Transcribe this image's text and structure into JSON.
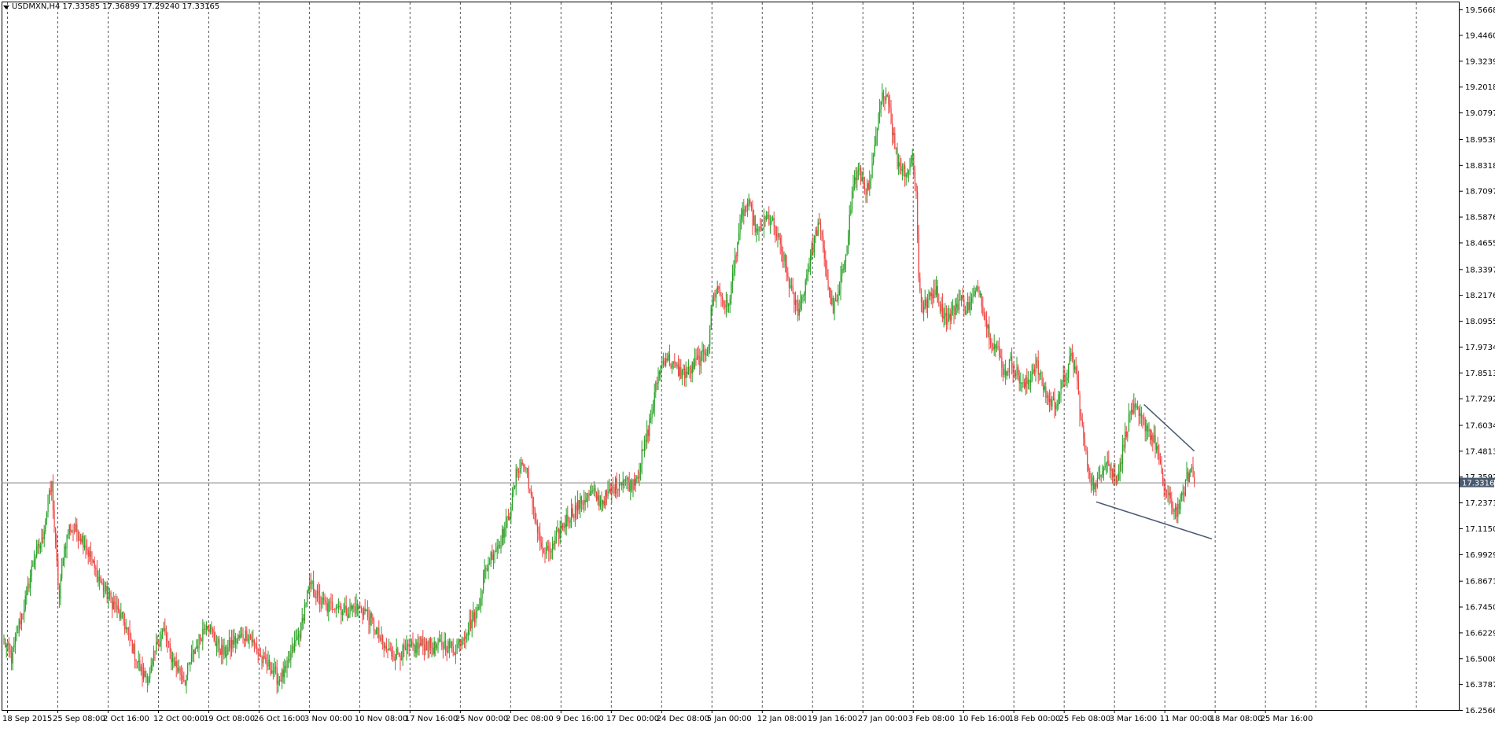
{
  "header": {
    "symbol_timeframe": "USDMXN,H4",
    "open": "17.33585",
    "high": "17.36899",
    "low": "17.29240",
    "close": "17.33165"
  },
  "current_price_label": "17.33165",
  "colors": {
    "bull": "#22a022",
    "bear": "#f04040",
    "grid": "#3a3a3a",
    "axis": "#000000",
    "trendline": "#4a5a70",
    "price_line": "#808080",
    "price_tag": "#4a5a70"
  },
  "chart_data": {
    "type": "candlestick",
    "symbol": "USDMXN",
    "timeframe": "H4",
    "ylim": [
      16.2566,
      19.5668
    ],
    "y_ticks": [
      "19.56681",
      "19.44600",
      "19.32390",
      "19.20180",
      "19.07970",
      "18.95390",
      "18.83180",
      "18.70970",
      "18.58760",
      "18.46550",
      "18.33970",
      "18.21760",
      "18.09550",
      "17.97340",
      "17.85130",
      "17.72920",
      "17.60340",
      "17.48130",
      "17.35920",
      "17.23710",
      "17.11500",
      "16.99290",
      "16.86710",
      "16.74500",
      "16.62290",
      "16.50080",
      "16.37870",
      "16.25660"
    ],
    "x_ticks": [
      "18 Sep 2015",
      "25 Sep 08:00",
      "2 Oct 16:00",
      "12 Oct 00:00",
      "19 Oct 08:00",
      "26 Oct 16:00",
      "3 Nov 00:00",
      "10 Nov 08:00",
      "17 Nov 16:00",
      "25 Nov 00:00",
      "2 Dec 08:00",
      "9 Dec 16:00",
      "17 Dec 00:00",
      "24 Dec 08:00",
      "5 Jan 00:00",
      "12 Jan 08:00",
      "19 Jan 16:00",
      "27 Jan 00:00",
      "3 Feb 08:00",
      "10 Feb 16:00",
      "18 Feb 00:00",
      "25 Feb 08:00",
      "3 Mar 16:00",
      "11 Mar 00:00",
      "18 Mar 08:00",
      "25 Mar 16:00"
    ],
    "anchors": [
      [
        0,
        16.58
      ],
      [
        6,
        16.5
      ],
      [
        12,
        16.66
      ],
      [
        18,
        16.8
      ],
      [
        24,
        16.98
      ],
      [
        30,
        17.05
      ],
      [
        34,
        17.2
      ],
      [
        38,
        17.32
      ],
      [
        41,
        17.02
      ],
      [
        44,
        16.78
      ],
      [
        47,
        17.0
      ],
      [
        52,
        17.12
      ],
      [
        58,
        17.1
      ],
      [
        64,
        17.05
      ],
      [
        72,
        16.92
      ],
      [
        80,
        16.82
      ],
      [
        88,
        16.75
      ],
      [
        96,
        16.66
      ],
      [
        104,
        16.52
      ],
      [
        110,
        16.42
      ],
      [
        116,
        16.42
      ],
      [
        122,
        16.58
      ],
      [
        127,
        16.63
      ],
      [
        132,
        16.52
      ],
      [
        138,
        16.45
      ],
      [
        144,
        16.4
      ],
      [
        150,
        16.52
      ],
      [
        156,
        16.6
      ],
      [
        161,
        16.68
      ],
      [
        168,
        16.58
      ],
      [
        175,
        16.52
      ],
      [
        182,
        16.58
      ],
      [
        188,
        16.6
      ],
      [
        194,
        16.62
      ],
      [
        200,
        16.55
      ],
      [
        206,
        16.48
      ],
      [
        212,
        16.46
      ],
      [
        218,
        16.4
      ],
      [
        224,
        16.44
      ],
      [
        230,
        16.55
      ],
      [
        236,
        16.64
      ],
      [
        240,
        16.78
      ],
      [
        244,
        16.85
      ],
      [
        250,
        16.78
      ],
      [
        257,
        16.74
      ],
      [
        264,
        16.76
      ],
      [
        271,
        16.72
      ],
      [
        278,
        16.74
      ],
      [
        286,
        16.73
      ],
      [
        294,
        16.65
      ],
      [
        302,
        16.55
      ],
      [
        310,
        16.52
      ],
      [
        318,
        16.53
      ],
      [
        326,
        16.55
      ],
      [
        334,
        16.57
      ],
      [
        342,
        16.55
      ],
      [
        350,
        16.57
      ],
      [
        358,
        16.54
      ],
      [
        364,
        16.6
      ],
      [
        370,
        16.66
      ],
      [
        376,
        16.72
      ],
      [
        382,
        16.9
      ],
      [
        388,
        17.0
      ],
      [
        394,
        17.05
      ],
      [
        400,
        17.15
      ],
      [
        404,
        17.25
      ],
      [
        408,
        17.4
      ],
      [
        412,
        17.42
      ],
      [
        416,
        17.38
      ],
      [
        420,
        17.2
      ],
      [
        424,
        17.12
      ],
      [
        428,
        17.0
      ],
      [
        432,
        17.0
      ],
      [
        436,
        17.02
      ],
      [
        440,
        17.08
      ],
      [
        444,
        17.13
      ],
      [
        450,
        17.18
      ],
      [
        456,
        17.22
      ],
      [
        462,
        17.26
      ],
      [
        468,
        17.28
      ],
      [
        474,
        17.24
      ],
      [
        480,
        17.27
      ],
      [
        486,
        17.32
      ],
      [
        492,
        17.35
      ],
      [
        498,
        17.32
      ],
      [
        504,
        17.38
      ],
      [
        508,
        17.48
      ],
      [
        512,
        17.58
      ],
      [
        516,
        17.7
      ],
      [
        520,
        17.85
      ],
      [
        526,
        17.93
      ],
      [
        532,
        17.88
      ],
      [
        538,
        17.85
      ],
      [
        544,
        17.85
      ],
      [
        550,
        17.9
      ],
      [
        556,
        17.93
      ],
      [
        560,
        18.0
      ],
      [
        563,
        18.2
      ],
      [
        567,
        18.25
      ],
      [
        571,
        18.2
      ],
      [
        575,
        18.15
      ],
      [
        579,
        18.3
      ],
      [
        583,
        18.48
      ],
      [
        587,
        18.6
      ],
      [
        591,
        18.65
      ],
      [
        595,
        18.58
      ],
      [
        599,
        18.5
      ],
      [
        603,
        18.55
      ],
      [
        607,
        18.58
      ],
      [
        611,
        18.55
      ],
      [
        615,
        18.48
      ],
      [
        619,
        18.4
      ],
      [
        623,
        18.3
      ],
      [
        627,
        18.2
      ],
      [
        631,
        18.15
      ],
      [
        635,
        18.22
      ],
      [
        639,
        18.35
      ],
      [
        643,
        18.45
      ],
      [
        647,
        18.55
      ],
      [
        651,
        18.45
      ],
      [
        655,
        18.25
      ],
      [
        659,
        18.15
      ],
      [
        663,
        18.2
      ],
      [
        667,
        18.35
      ],
      [
        671,
        18.52
      ],
      [
        675,
        18.75
      ],
      [
        679,
        18.8
      ],
      [
        683,
        18.75
      ],
      [
        687,
        18.7
      ],
      [
        691,
        18.85
      ],
      [
        695,
        19.05
      ],
      [
        699,
        19.18
      ],
      [
        703,
        19.15
      ],
      [
        706,
        19.0
      ],
      [
        710,
        18.85
      ],
      [
        714,
        18.82
      ],
      [
        718,
        18.8
      ],
      [
        722,
        18.88
      ],
      [
        725,
        18.7
      ],
      [
        727,
        18.3
      ],
      [
        730,
        18.15
      ],
      [
        735,
        18.2
      ],
      [
        740,
        18.25
      ],
      [
        745,
        18.15
      ],
      [
        750,
        18.1
      ],
      [
        755,
        18.15
      ],
      [
        760,
        18.2
      ],
      [
        765,
        18.15
      ],
      [
        770,
        18.2
      ],
      [
        775,
        18.25
      ],
      [
        780,
        18.1
      ],
      [
        785,
        18.0
      ],
      [
        790,
        17.95
      ],
      [
        795,
        17.85
      ],
      [
        800,
        17.9
      ],
      [
        805,
        17.85
      ],
      [
        810,
        17.78
      ],
      [
        815,
        17.82
      ],
      [
        820,
        17.9
      ],
      [
        825,
        17.8
      ],
      [
        830,
        17.72
      ],
      [
        835,
        17.7
      ],
      [
        840,
        17.78
      ],
      [
        845,
        17.85
      ],
      [
        848,
        17.92
      ],
      [
        852,
        17.85
      ],
      [
        856,
        17.62
      ],
      [
        860,
        17.45
      ],
      [
        864,
        17.35
      ],
      [
        868,
        17.3
      ],
      [
        872,
        17.4
      ],
      [
        876,
        17.45
      ],
      [
        880,
        17.38
      ],
      [
        884,
        17.35
      ],
      [
        888,
        17.45
      ],
      [
        892,
        17.58
      ],
      [
        896,
        17.68
      ],
      [
        900,
        17.66
      ],
      [
        904,
        17.62
      ],
      [
        908,
        17.6
      ],
      [
        912,
        17.55
      ],
      [
        916,
        17.5
      ],
      [
        920,
        17.35
      ],
      [
        924,
        17.28
      ],
      [
        928,
        17.22
      ],
      [
        932,
        17.2
      ],
      [
        936,
        17.25
      ],
      [
        940,
        17.35
      ],
      [
        944,
        17.4
      ],
      [
        946,
        17.33
      ]
    ],
    "trendlines": [
      {
        "from": [
          906,
          17.7
        ],
        "to": [
          946,
          17.48
        ]
      },
      {
        "from": [
          868,
          17.24
        ],
        "to": [
          960,
          17.065
        ]
      }
    ],
    "current_price": 17.33165
  }
}
